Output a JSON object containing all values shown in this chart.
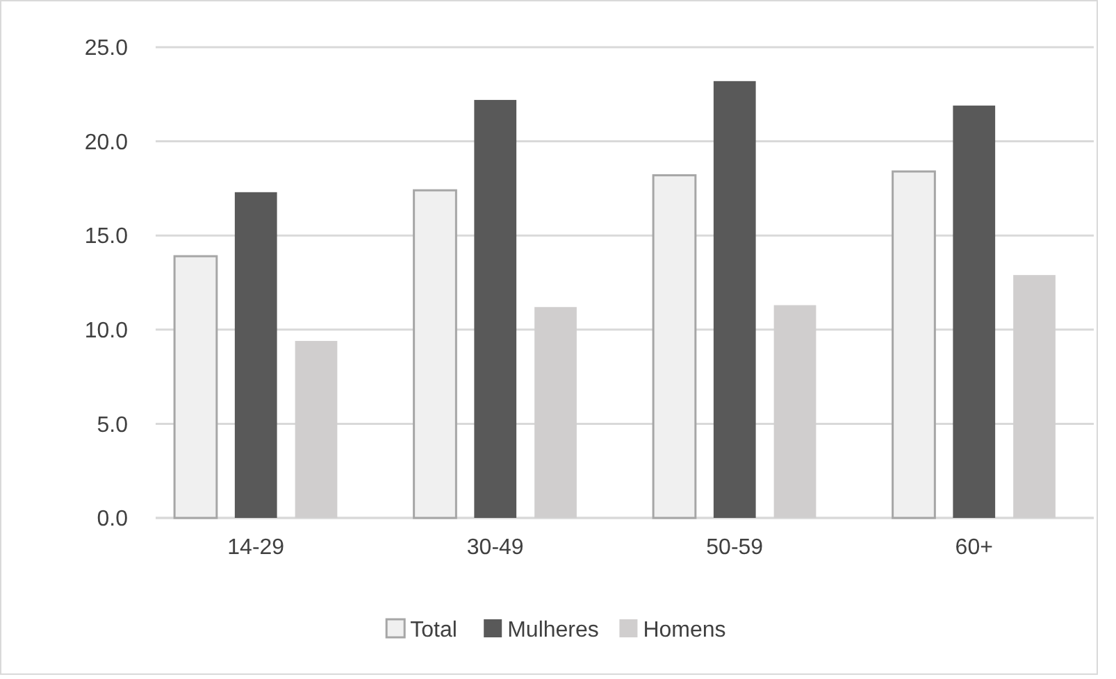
{
  "chart_data": {
    "type": "bar",
    "categories": [
      "14-29",
      "30-49",
      "50-59",
      "60+"
    ],
    "series": [
      {
        "name": "Total",
        "color": "#f0f0f0",
        "values": [
          13.9,
          17.4,
          18.2,
          18.4
        ]
      },
      {
        "name": "Mulheres",
        "color": "#595959",
        "values": [
          17.3,
          22.2,
          23.2,
          21.9
        ]
      },
      {
        "name": "Homens",
        "color": "#d0cece",
        "values": [
          9.4,
          11.2,
          11.3,
          12.9
        ]
      }
    ],
    "ylim": [
      0,
      25
    ],
    "yticks": [
      {
        "value": 0,
        "label": "0.0"
      },
      {
        "value": 5,
        "label": "5.0"
      },
      {
        "value": 10,
        "label": "10.0"
      },
      {
        "value": 15,
        "label": "15.0"
      },
      {
        "value": 20,
        "label": "20.0"
      },
      {
        "value": 25,
        "label": "25.0"
      }
    ],
    "grid": "y",
    "legend": "bottom"
  }
}
